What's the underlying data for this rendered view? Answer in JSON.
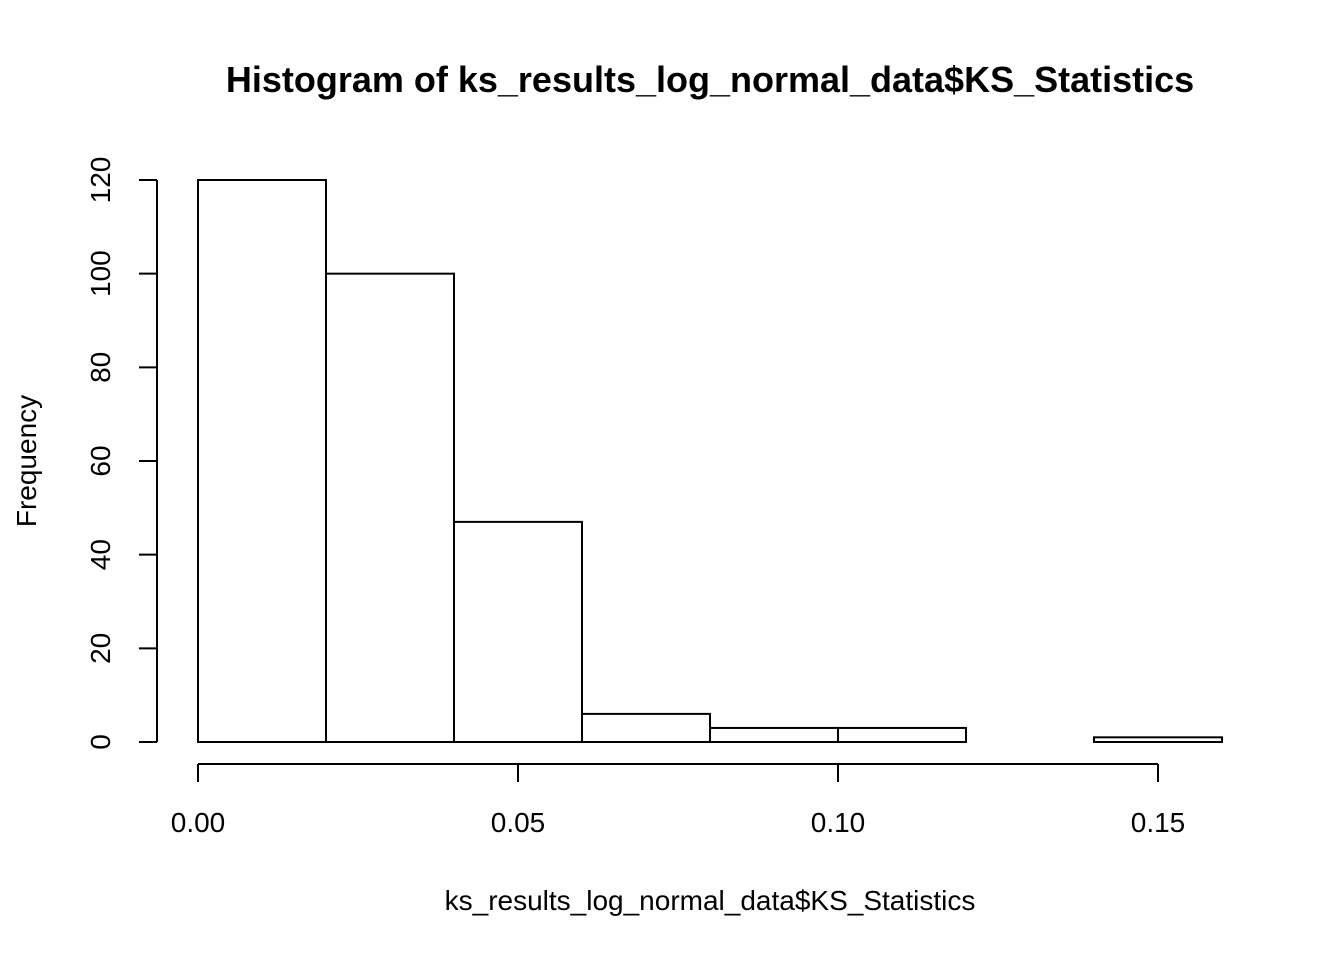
{
  "chart_data": {
    "type": "bar",
    "title": "Histogram of ks_results_log_normal_data$KS_Statistics",
    "xlabel": "ks_results_log_normal_data$KS_Statistics",
    "ylabel": "Frequency",
    "bin_edges": [
      0.0,
      0.02,
      0.04,
      0.06,
      0.08,
      0.1,
      0.12,
      0.14,
      0.16
    ],
    "values": [
      120,
      100,
      47,
      6,
      3,
      3,
      0,
      1
    ],
    "xlim": [
      0.0,
      0.16
    ],
    "ylim": [
      0,
      120
    ],
    "x_ticks": [
      0.0,
      0.05,
      0.1,
      0.15
    ],
    "x_tick_labels": [
      "0.00",
      "0.05",
      "0.10",
      "0.15"
    ],
    "y_ticks": [
      0,
      20,
      40,
      60,
      80,
      100,
      120
    ],
    "y_tick_labels": [
      "0",
      "20",
      "40",
      "60",
      "80",
      "100",
      "120"
    ],
    "grid": false,
    "bar_fill": "#ffffff",
    "bar_stroke": "#000000"
  }
}
